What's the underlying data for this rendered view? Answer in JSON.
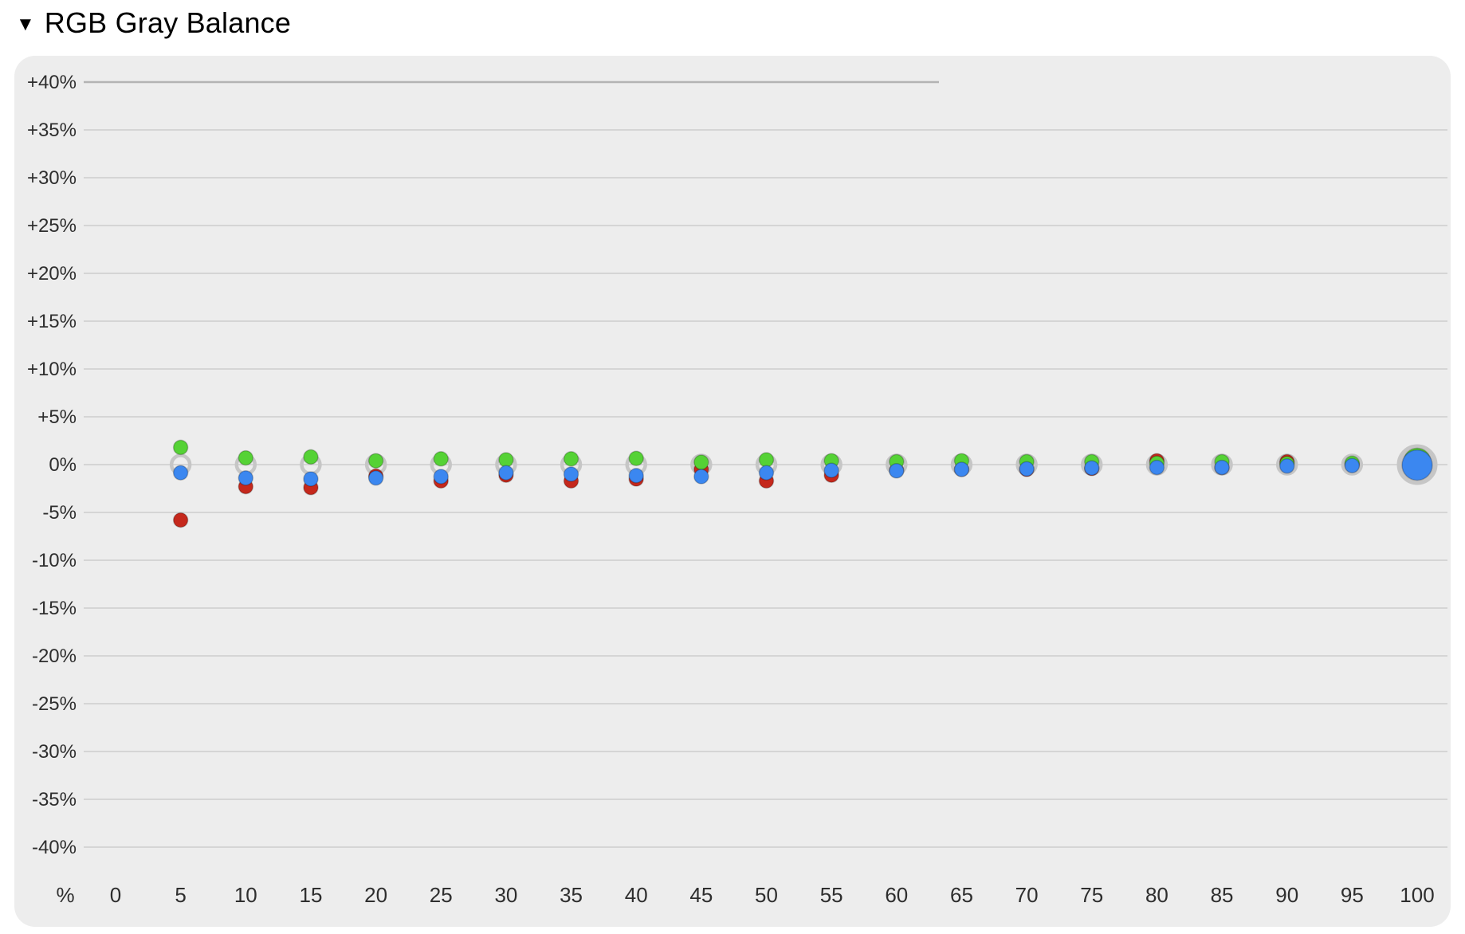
{
  "header": {
    "disclosure_icon": "▼",
    "title": "RGB Gray Balance"
  },
  "chart_data": {
    "type": "scatter",
    "title": "RGB Gray Balance",
    "x_unit_label": "%",
    "x_tick_labels": [
      "0",
      "5",
      "10",
      "15",
      "20",
      "25",
      "30",
      "35",
      "40",
      "45",
      "50",
      "55",
      "60",
      "65",
      "70",
      "75",
      "80",
      "85",
      "90",
      "95",
      "100"
    ],
    "x_tick_values": [
      0,
      5,
      10,
      15,
      20,
      25,
      30,
      35,
      40,
      45,
      50,
      55,
      60,
      65,
      70,
      75,
      80,
      85,
      90,
      95,
      100
    ],
    "y_tick_labels": [
      "+40%",
      "+35%",
      "+30%",
      "+25%",
      "+20%",
      "+15%",
      "+10%",
      "+5%",
      "0%",
      "-5%",
      "-10%",
      "-15%",
      "-20%",
      "-25%",
      "-30%",
      "-35%",
      "-40%"
    ],
    "y_tick_values": [
      40,
      35,
      30,
      25,
      20,
      15,
      10,
      5,
      0,
      -5,
      -10,
      -15,
      -20,
      -25,
      -30,
      -35,
      -40
    ],
    "xlim": [
      0,
      100
    ],
    "ylim": [
      -40,
      40
    ],
    "grid": "horizontal",
    "legend": "none",
    "x": [
      5,
      10,
      15,
      20,
      25,
      30,
      35,
      40,
      45,
      50,
      55,
      60,
      65,
      70,
      75,
      80,
      85,
      90,
      95,
      100
    ],
    "series": [
      {
        "name": "Red",
        "color": "#c5281c",
        "values": [
          -5.8,
          -2.3,
          -2.4,
          -1.2,
          -1.7,
          -1.1,
          -1.7,
          -1.5,
          -0.5,
          -1.7,
          -1.1,
          -0.6,
          -0.5,
          -0.5,
          -0.4,
          0.4,
          -0.3,
          0.3,
          0.0,
          0.0
        ]
      },
      {
        "name": "Green",
        "color": "#55d235",
        "values": [
          1.8,
          0.7,
          0.8,
          0.4,
          0.6,
          0.5,
          0.6,
          0.65,
          0.25,
          0.5,
          0.4,
          0.3,
          0.4,
          0.3,
          0.3,
          0.15,
          0.3,
          0.1,
          0.15,
          0.3
        ]
      },
      {
        "name": "Blue",
        "color": "#3b87f0",
        "values": [
          -0.85,
          -1.4,
          -1.5,
          -1.4,
          -1.25,
          -0.85,
          -1.0,
          -1.15,
          -1.25,
          -0.85,
          -0.6,
          -0.65,
          -0.5,
          -0.45,
          -0.35,
          -0.3,
          -0.3,
          -0.15,
          -0.1,
          -0.05
        ]
      }
    ],
    "reference_ring": {
      "name": "gray-target-ring",
      "value": 0,
      "color": "#c6c6c6"
    },
    "colors": {
      "panel_background": "#ededed",
      "gridline": "#cdcdcd",
      "top_rule": "#b3b3b3",
      "tick_label": "#2e2e2e"
    }
  }
}
